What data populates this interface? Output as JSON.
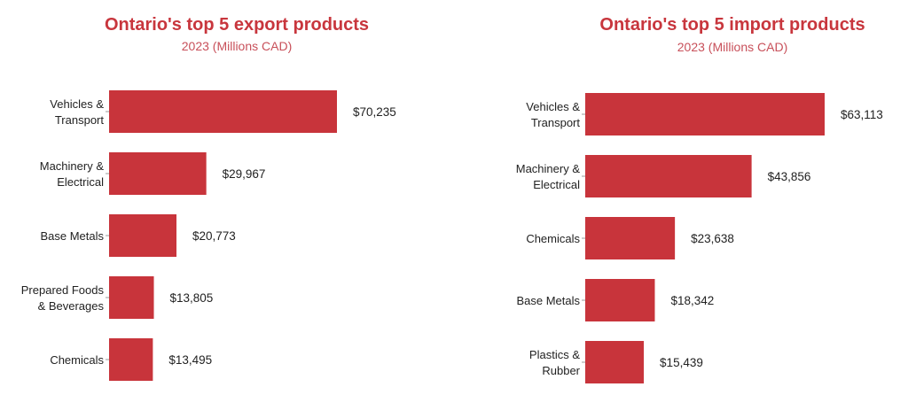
{
  "chart_data": [
    {
      "type": "bar",
      "orientation": "horizontal",
      "title": "Ontario's top 5 export products",
      "subtitle": "2023 (Millions CAD)",
      "categories": [
        [
          "Vehicles &",
          "Transport"
        ],
        [
          "Machinery &",
          "Electrical"
        ],
        [
          "Base Metals"
        ],
        [
          "Prepared Foods",
          "& Beverages"
        ],
        [
          "Chemicals"
        ]
      ],
      "values": [
        70235,
        29967,
        20773,
        13805,
        13495
      ],
      "value_labels": [
        "$70,235",
        "$29,967",
        "$20,773",
        "$13,805",
        "$13,495"
      ],
      "bar_color": "#c8343b",
      "grid": false
    },
    {
      "type": "bar",
      "orientation": "horizontal",
      "title": "Ontario's top 5 import products",
      "subtitle": "2023 (Millions CAD)",
      "categories": [
        [
          "Vehicles &",
          "Transport"
        ],
        [
          "Machinery &",
          "Electrical"
        ],
        [
          "Chemicals"
        ],
        [
          "Base Metals"
        ],
        [
          "Plastics &",
          "Rubber"
        ]
      ],
      "values": [
        63113,
        43856,
        23638,
        18342,
        15439
      ],
      "value_labels": [
        "$63,113",
        "$43,856",
        "$23,638",
        "$18,342",
        "$15,439"
      ],
      "bar_color": "#c8343b",
      "grid": false
    }
  ]
}
